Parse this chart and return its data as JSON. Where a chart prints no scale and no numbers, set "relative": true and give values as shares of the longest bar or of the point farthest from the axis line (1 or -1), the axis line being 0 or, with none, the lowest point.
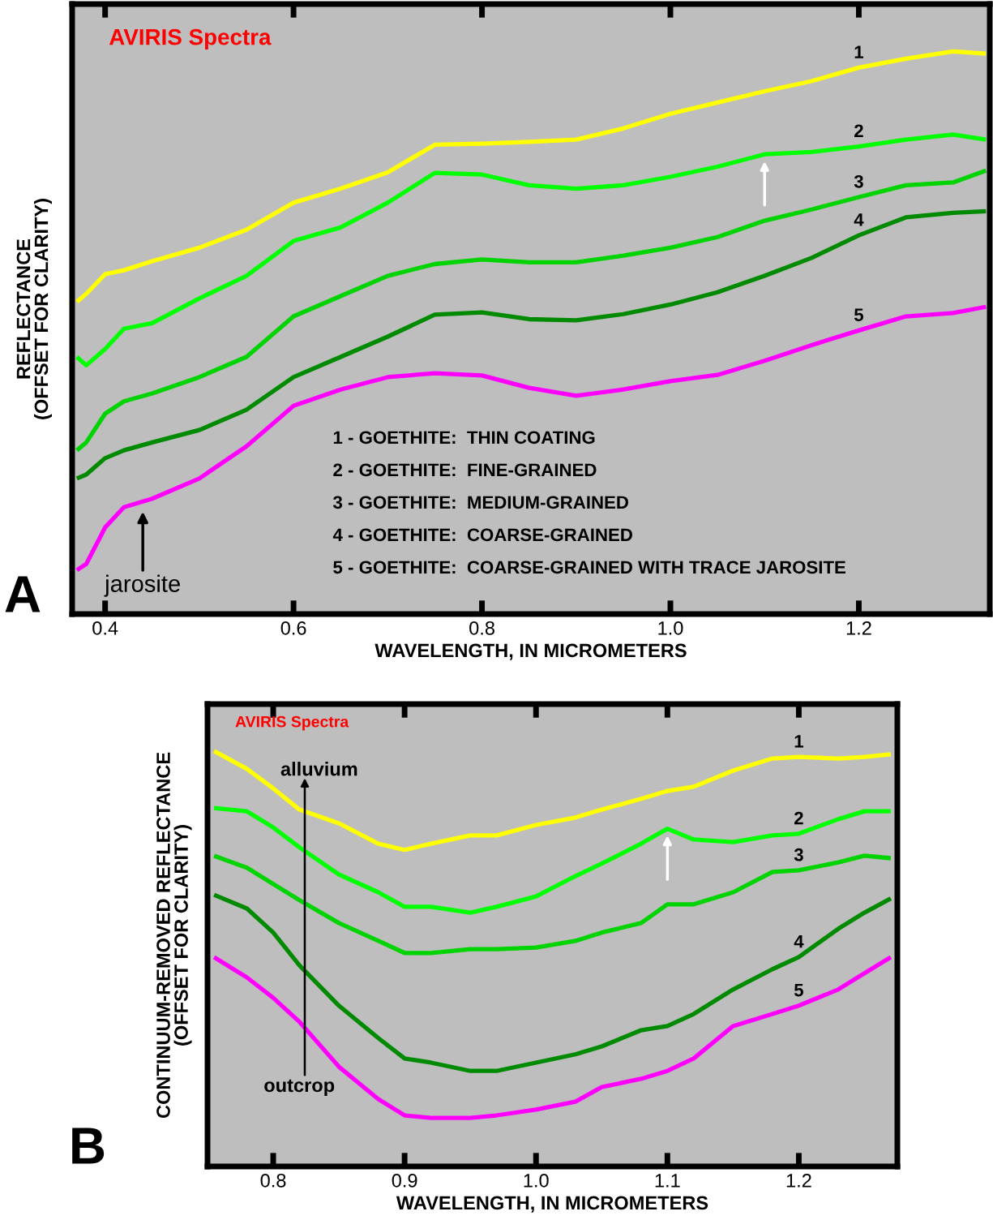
{
  "chart_data": [
    {
      "type": "line",
      "title": "AVIRIS Spectra",
      "xlabel": "WAVELENGTH, IN MICROMETERS",
      "ylabel": "REFLECTANCE\n(OFFSET FOR CLARITY)",
      "relative": true,
      "x": [
        0.37,
        0.38,
        0.4,
        0.42,
        0.45,
        0.5,
        0.55,
        0.6,
        0.65,
        0.7,
        0.75,
        0.8,
        0.85,
        0.9,
        0.95,
        1.0,
        1.05,
        1.1,
        1.15,
        1.2,
        1.25,
        1.3,
        1.335
      ],
      "xlim": [
        0.365,
        1.339
      ],
      "xticks": [
        0.4,
        0.6,
        0.8,
        {
          "value": 1.0,
          "label": "1.0"
        },
        1.2
      ],
      "series": [
        {
          "name": "1",
          "color": "#ffff00",
          "values": [
            0.555,
            0.569,
            0.604,
            0.611,
            0.627,
            0.651,
            0.683,
            0.731,
            0.756,
            0.785,
            0.834,
            0.836,
            0.839,
            0.843,
            0.863,
            0.889,
            0.909,
            0.929,
            0.947,
            0.971,
            0.987,
            1.0,
            0.996
          ]
        },
        {
          "name": "2",
          "color": "#00ff00",
          "values": [
            0.457,
            0.442,
            0.471,
            0.507,
            0.517,
            0.561,
            0.601,
            0.663,
            0.687,
            0.731,
            0.784,
            0.781,
            0.762,
            0.756,
            0.762,
            0.777,
            0.795,
            0.817,
            0.821,
            0.831,
            0.843,
            0.852,
            0.843
          ]
        },
        {
          "name": "3",
          "color": "#00d400",
          "values": [
            0.291,
            0.305,
            0.356,
            0.378,
            0.392,
            0.421,
            0.457,
            0.529,
            0.565,
            0.601,
            0.622,
            0.63,
            0.625,
            0.625,
            0.637,
            0.651,
            0.67,
            0.699,
            0.719,
            0.741,
            0.762,
            0.767,
            0.788
          ]
        },
        {
          "name": "4",
          "color": "#008a00",
          "values": [
            0.241,
            0.248,
            0.277,
            0.291,
            0.305,
            0.327,
            0.363,
            0.421,
            0.457,
            0.493,
            0.532,
            0.536,
            0.524,
            0.522,
            0.533,
            0.55,
            0.572,
            0.601,
            0.633,
            0.673,
            0.705,
            0.713,
            0.716
          ]
        },
        {
          "name": "5",
          "color": "#ff00ff",
          "values": [
            0.078,
            0.089,
            0.154,
            0.19,
            0.205,
            0.241,
            0.298,
            0.37,
            0.399,
            0.421,
            0.428,
            0.424,
            0.402,
            0.388,
            0.399,
            0.414,
            0.425,
            0.45,
            0.478,
            0.504,
            0.529,
            0.535,
            0.546
          ]
        }
      ],
      "annotations": [
        "A",
        {
          "text": "jarosite",
          "x": 0.44,
          "y": 0.19
        },
        "1 - GOETHITE:  THIN COATING",
        "2 - GOETHITE:  FINE-GRAINED",
        "3 - GOETHITE:  MEDIUM-GRAINED",
        "4 - GOETHITE:  COARSE-GRAINED",
        "5 - GOETHITE:  COARSE-GRAINED WITH TRACE JAROSITE"
      ],
      "legend": false,
      "grid": false
    },
    {
      "type": "line",
      "title": "AVIRIS Spectra",
      "xlabel": "WAVELENGTH, IN MICROMETERS",
      "ylabel": "CONTINUUM-REMOVED REFLECTANCE\n(OFFSET FOR CLARITY)",
      "relative": true,
      "x": [
        0.755,
        0.78,
        0.8,
        0.82,
        0.85,
        0.88,
        0.9,
        0.92,
        0.95,
        0.97,
        1.0,
        1.03,
        1.05,
        1.08,
        1.1,
        1.12,
        1.15,
        1.18,
        1.2,
        1.23,
        1.25,
        1.27
      ],
      "xlim": [
        0.75,
        1.275
      ],
      "xticks": [
        0.8,
        0.9,
        {
          "value": 1.0,
          "label": "1.0"
        },
        1.1,
        1.2
      ],
      "series": [
        {
          "name": "1",
          "color": "#ffff00",
          "values": [
            1.0,
            0.957,
            0.91,
            0.859,
            0.826,
            0.777,
            0.762,
            0.777,
            0.797,
            0.797,
            0.822,
            0.84,
            0.859,
            0.885,
            0.904,
            0.914,
            0.953,
            0.982,
            0.986,
            0.982,
            0.986,
            0.992
          ]
        },
        {
          "name": "2",
          "color": "#00ff00",
          "values": [
            0.863,
            0.855,
            0.816,
            0.768,
            0.703,
            0.66,
            0.625,
            0.625,
            0.611,
            0.625,
            0.65,
            0.699,
            0.729,
            0.777,
            0.813,
            0.787,
            0.781,
            0.797,
            0.801,
            0.836,
            0.855,
            0.855
          ]
        },
        {
          "name": "3",
          "color": "#00d400",
          "values": [
            0.748,
            0.719,
            0.68,
            0.641,
            0.586,
            0.543,
            0.514,
            0.514,
            0.523,
            0.523,
            0.527,
            0.543,
            0.563,
            0.586,
            0.631,
            0.631,
            0.66,
            0.709,
            0.713,
            0.732,
            0.748,
            0.742
          ]
        },
        {
          "name": "4",
          "color": "#008a00",
          "values": [
            0.654,
            0.621,
            0.563,
            0.484,
            0.387,
            0.309,
            0.26,
            0.25,
            0.23,
            0.23,
            0.25,
            0.27,
            0.289,
            0.328,
            0.338,
            0.367,
            0.426,
            0.475,
            0.504,
            0.572,
            0.611,
            0.645
          ]
        },
        {
          "name": "5",
          "color": "#ff00ff",
          "values": [
            0.504,
            0.455,
            0.406,
            0.348,
            0.24,
            0.162,
            0.123,
            0.117,
            0.117,
            0.123,
            0.137,
            0.156,
            0.191,
            0.211,
            0.23,
            0.26,
            0.338,
            0.367,
            0.387,
            0.426,
            0.465,
            0.504
          ]
        }
      ],
      "annotations": [
        "B",
        "alluvium",
        "outcrop"
      ],
      "legend": false,
      "grid": false
    }
  ]
}
